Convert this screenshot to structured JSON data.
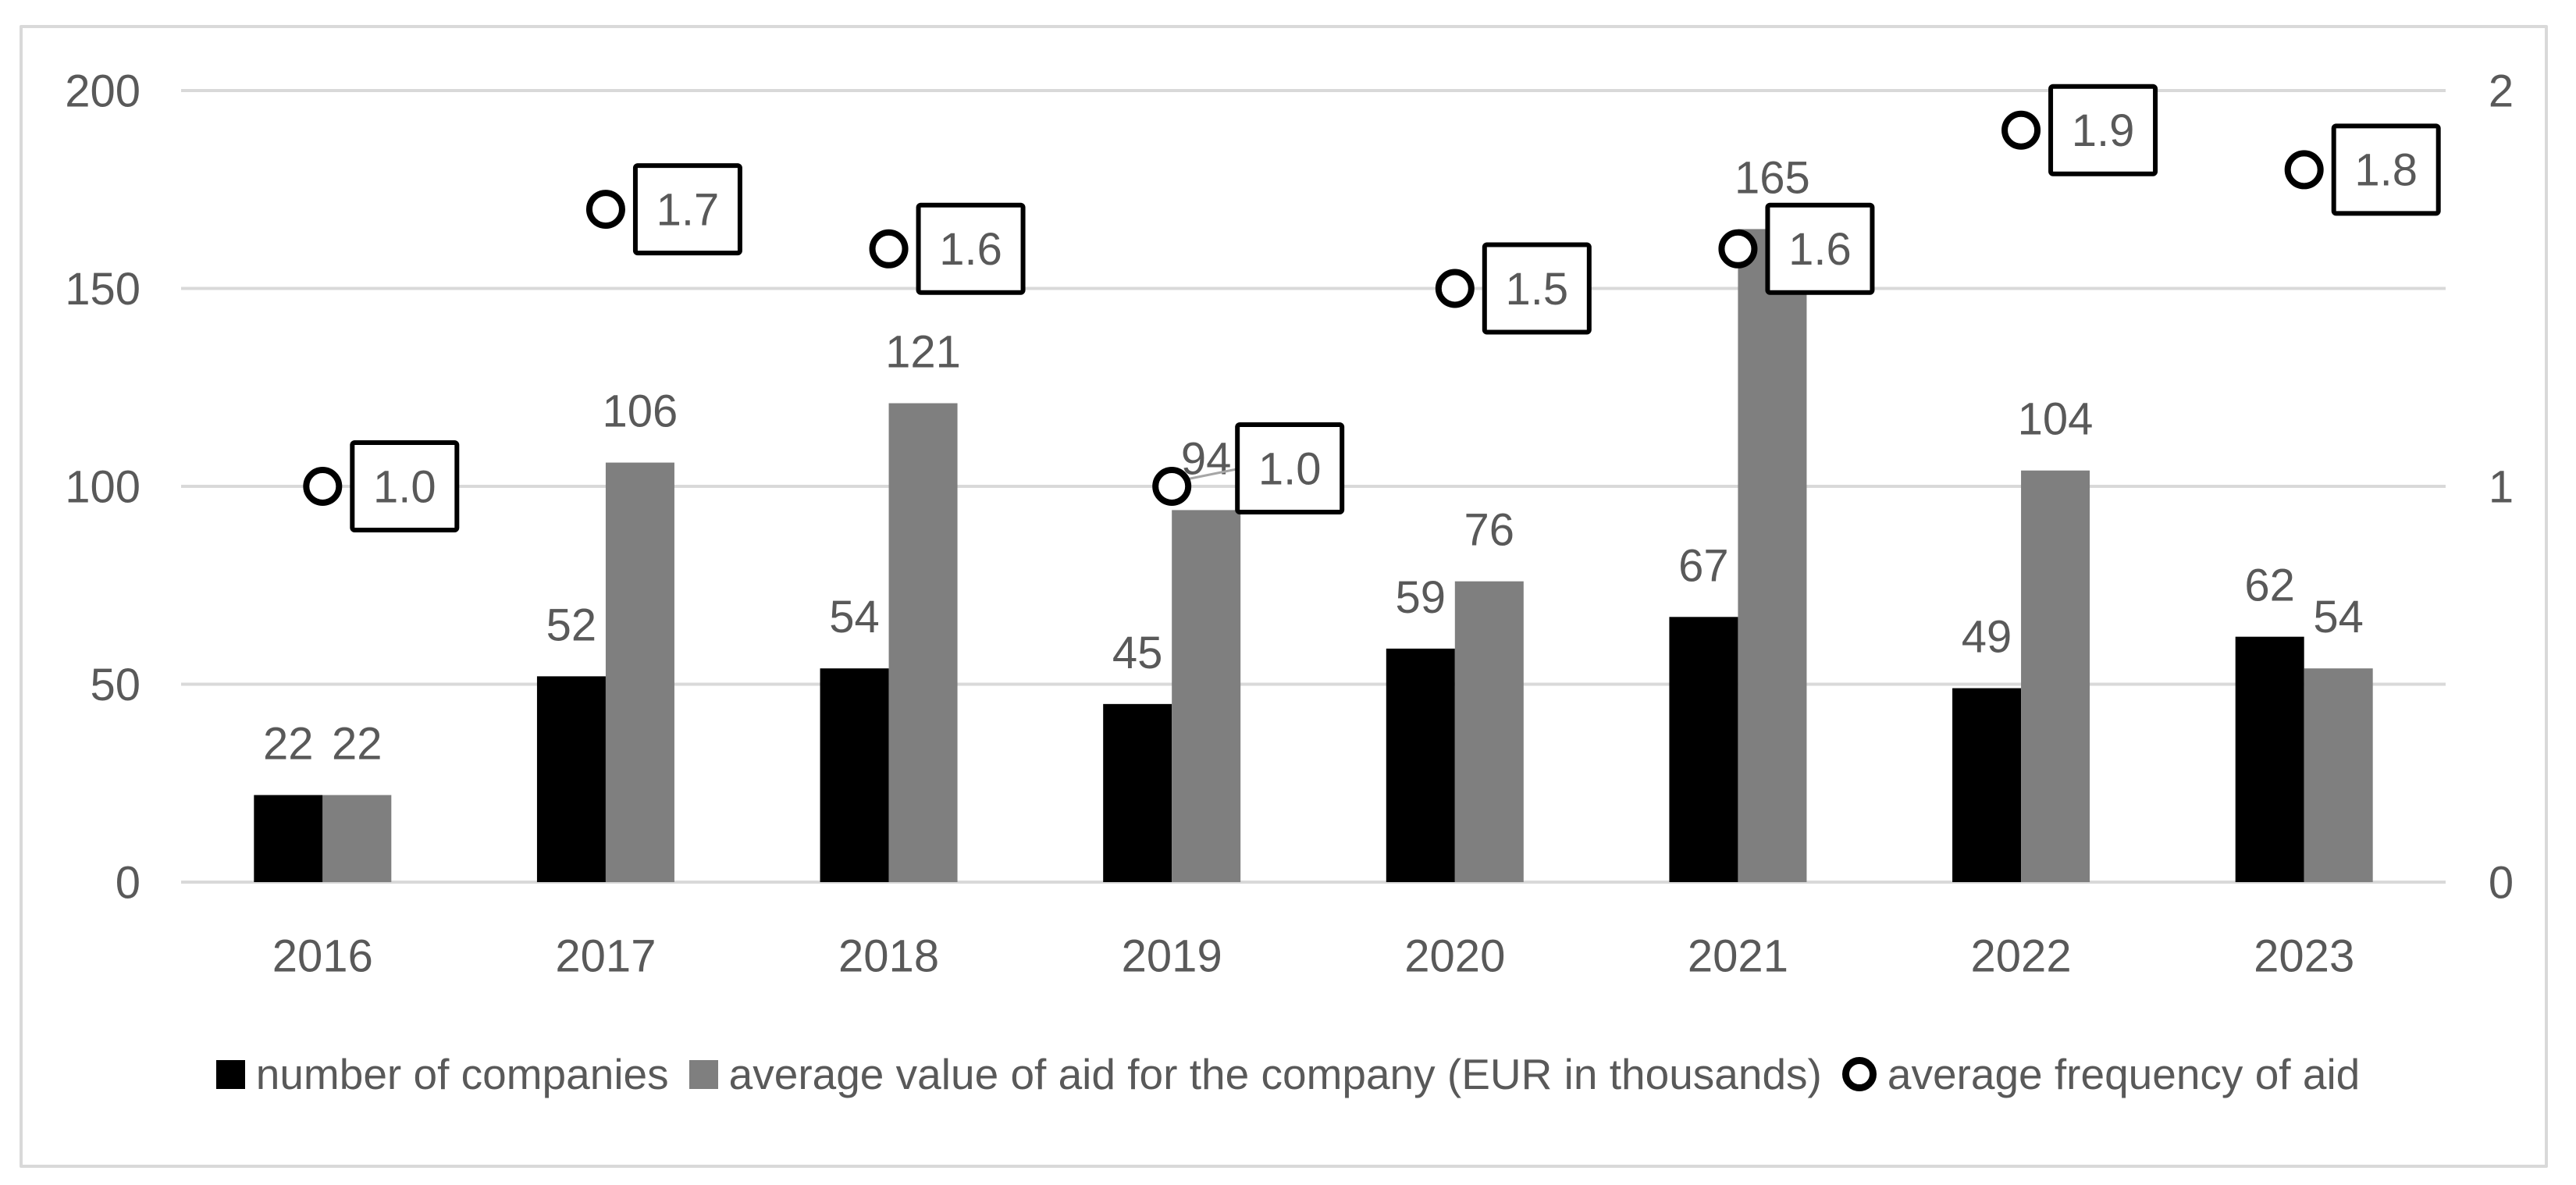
{
  "chart_data": {
    "type": "combo",
    "categories": [
      "2016",
      "2017",
      "2018",
      "2019",
      "2020",
      "2021",
      "2022",
      "2023"
    ],
    "series": [
      {
        "name": "number of companies",
        "type": "bar",
        "axis": "left",
        "color": "#000000",
        "values": [
          22,
          52,
          54,
          45,
          59,
          67,
          49,
          62
        ]
      },
      {
        "name": "average value of aid for the company (EUR in thousands)",
        "type": "bar",
        "axis": "left",
        "color": "#7F7F7F",
        "values": [
          22,
          106,
          121,
          94,
          76,
          165,
          104,
          54
        ]
      },
      {
        "name": "average frequency of aid",
        "type": "scatter",
        "marker": "open-circle",
        "axis": "right",
        "color": "#000000",
        "values": [
          1.0,
          1.7,
          1.6,
          1.0,
          1.5,
          1.6,
          1.9,
          1.8
        ],
        "point_labels": [
          "1.0",
          "1.7",
          "1.6",
          "1.0",
          "1.5",
          "1.6",
          "1.9",
          "1.8"
        ]
      }
    ],
    "left_axis": {
      "range": [
        0,
        200
      ],
      "ticks": [
        0,
        50,
        100,
        150,
        200
      ]
    },
    "right_axis": {
      "range": [
        0,
        2
      ],
      "ticks": [
        0,
        1,
        2
      ]
    },
    "grid": true,
    "legend_position": "bottom",
    "title": "",
    "colors": {
      "grid": "#D9D9D9",
      "chart_border": "#D9D9D9",
      "axis_text": "#595959",
      "label_text": "#595959",
      "bar_black": "#000000",
      "bar_gray": "#7F7F7F",
      "marker_stroke": "#000000",
      "label_box_border": "#000000",
      "label_box_fill": "#FFFFFF",
      "leader_line": "#A6A6A6"
    }
  }
}
